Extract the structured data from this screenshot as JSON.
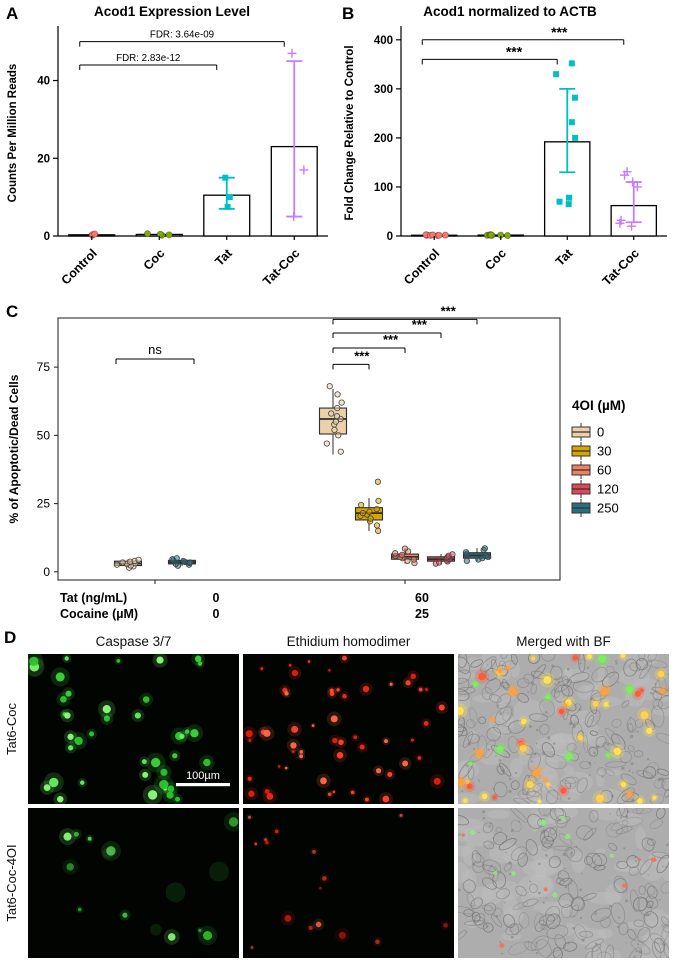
{
  "figure": {
    "panel_labels": {
      "A": "A",
      "B": "B",
      "C": "C",
      "D": "D"
    }
  },
  "chart_data": [
    {
      "id": "A",
      "type": "bar",
      "title": "Acod1 Expression Level",
      "ylabel": "Counts Per Million Reads",
      "categories": [
        "Control",
        "Coc",
        "Tat",
        "Tat-Coc"
      ],
      "values": [
        0.3,
        0.4,
        10.5,
        23
      ],
      "errors": [
        null,
        null,
        [
          7,
          15
        ],
        [
          5,
          45
        ]
      ],
      "points": [
        [
          0.2,
          0.35,
          0.5
        ],
        [
          0.2,
          0.3,
          0.45,
          0.6
        ],
        [
          7.5,
          10,
          15
        ],
        [
          5,
          17,
          47
        ]
      ],
      "colors": [
        "#F8766D",
        "#7CAE00",
        "#00BFC4",
        "#C77CFF"
      ],
      "markers": [
        "circle",
        "circle",
        "square",
        "plus"
      ],
      "ylim": [
        0,
        53
      ],
      "yticks": [
        0,
        20,
        40
      ],
      "brackets": [
        {
          "label": "FDR: 3.64e-09",
          "from": 0,
          "to": 3,
          "y": 50
        },
        {
          "label": "FDR: 2.83e-12",
          "from": 0,
          "to": 2,
          "y": 44
        }
      ]
    },
    {
      "id": "B",
      "type": "bar",
      "title": "Acod1 normalized to ACTB",
      "ylabel": "Fold Change Relative to Control",
      "categories": [
        "Control",
        "Coc",
        "Tat",
        "Tat-Coc"
      ],
      "values": [
        1.5,
        1.8,
        192,
        62
      ],
      "errors": [
        null,
        null,
        [
          130,
          300
        ],
        [
          28,
          110
        ]
      ],
      "points": [
        [
          1,
          1.5,
          2,
          2.5,
          1.2,
          1.8,
          2.2,
          1.6
        ],
        [
          1,
          1.5,
          2,
          2.5,
          1.2,
          1.8,
          2.2
        ],
        [
          65,
          70,
          78,
          200,
          232,
          282,
          330,
          352
        ],
        [
          20,
          26,
          32,
          100,
          110,
          124,
          131
        ]
      ],
      "colors": [
        "#F8766D",
        "#7CAE00",
        "#00BFC4",
        "#C77CFF"
      ],
      "markers": [
        "circle",
        "circle",
        "square",
        "plus"
      ],
      "ylim": [
        0,
        420
      ],
      "yticks": [
        0,
        100,
        200,
        300,
        400
      ],
      "brackets": [
        {
          "label": "***",
          "from": 0,
          "to": 3,
          "y": 400
        },
        {
          "label": "***",
          "from": 0,
          "to": 2,
          "y": 360
        }
      ]
    },
    {
      "id": "C",
      "type": "box",
      "ylabel": "% of Apoptotic/Dead Cells",
      "ylim": [
        -3,
        93
      ],
      "yticks": [
        0,
        25,
        50,
        75
      ],
      "legend_title": "4OI (µM)",
      "legend": [
        {
          "label": "0",
          "color": "#EBD0A9"
        },
        {
          "label": "30",
          "color": "#D8A500"
        },
        {
          "label": "60",
          "color": "#EE8262"
        },
        {
          "label": "120",
          "color": "#E0485A"
        },
        {
          "label": "250",
          "color": "#27707F"
        }
      ],
      "x_axis": {
        "row1_label": "Tat (ng/mL)",
        "row2_label": "Cocaine (µM)",
        "groups": [
          {
            "tat": "0",
            "cocaine": "0"
          },
          {
            "tat": "60",
            "cocaine": "25"
          }
        ]
      },
      "boxes": [
        {
          "group": 0,
          "oi": "0",
          "color": "#EBD0A9",
          "lo": 1.4,
          "q1": 2.3,
          "median": 3,
          "q3": 3.9,
          "hi": 4.6,
          "points": [
            1.5,
            2,
            2.3,
            2.6,
            2.9,
            3.1,
            3.4,
            3.7,
            4,
            4.4
          ]
        },
        {
          "group": 0,
          "oi": "250",
          "color": "#27707F",
          "lo": 2.1,
          "q1": 2.9,
          "median": 3.5,
          "q3": 4.2,
          "hi": 5.1,
          "points": [
            2.2,
            2.6,
            2.9,
            3.2,
            3.4,
            3.6,
            3.9,
            4.2,
            4.6,
            5
          ]
        },
        {
          "group": 1,
          "oi": "0",
          "color": "#EBD0A9",
          "lo": 43,
          "q1": 50.5,
          "median": 56,
          "q3": 60,
          "hi": 67,
          "points": [
            44,
            47,
            50,
            52,
            54,
            55,
            56,
            57,
            58,
            60,
            62,
            65,
            68
          ]
        },
        {
          "group": 1,
          "oi": "30",
          "color": "#D8A500",
          "lo": 15,
          "q1": 19,
          "median": 21.5,
          "q3": 23.5,
          "hi": 27,
          "points": [
            15,
            17,
            18.5,
            19.5,
            20.5,
            21,
            21.5,
            22,
            23,
            24.5,
            26,
            33
          ]
        },
        {
          "group": 1,
          "oi": "60",
          "color": "#EE8262",
          "lo": 3,
          "q1": 4.6,
          "median": 5.5,
          "q3": 6.5,
          "hi": 8.6,
          "points": [
            3.2,
            4,
            4.5,
            5,
            5.4,
            5.8,
            6.2,
            6.8,
            7.5,
            8.5
          ]
        },
        {
          "group": 1,
          "oi": "120",
          "color": "#E0485A",
          "lo": 2.9,
          "q1": 3.9,
          "median": 4.6,
          "q3": 5.5,
          "hi": 6.5,
          "points": [
            3,
            3.4,
            3.8,
            4.2,
            4.6,
            5,
            5.4,
            5.9,
            6.4
          ]
        },
        {
          "group": 1,
          "oi": "250",
          "color": "#27707F",
          "lo": 3.9,
          "q1": 5,
          "median": 6,
          "q3": 7,
          "hi": 8.7,
          "points": [
            4,
            4.5,
            5,
            5.4,
            5.8,
            6.2,
            6.6,
            7.2,
            8,
            8.6
          ]
        }
      ],
      "brackets": [
        {
          "label": "ns",
          "boxes": [
            0,
            1
          ],
          "y": 78
        },
        {
          "label": "***",
          "boxes": [
            2,
            3
          ],
          "y": 76
        },
        {
          "label": "***",
          "boxes": [
            2,
            4
          ],
          "y": 82
        },
        {
          "label": "***",
          "boxes": [
            2,
            5
          ],
          "y": 87.5
        },
        {
          "label": "***",
          "boxes": [
            2,
            6
          ],
          "y": 92.5
        }
      ]
    }
  ],
  "panel_d": {
    "col_headers": [
      "Caspase 3/7",
      "Ethidium homodimer",
      "Merged with BF"
    ],
    "row_labels": [
      "Tat6-Coc",
      "Tat6-Coc-4OI"
    ],
    "scale_bar_label": "100µm",
    "tiles": [
      {
        "row": 0,
        "col": 0,
        "kind": "green",
        "density": "high"
      },
      {
        "row": 0,
        "col": 1,
        "kind": "red",
        "density": "high"
      },
      {
        "row": 0,
        "col": 2,
        "kind": "merged",
        "density": "high"
      },
      {
        "row": 1,
        "col": 0,
        "kind": "green",
        "density": "low"
      },
      {
        "row": 1,
        "col": 1,
        "kind": "red",
        "density": "low"
      },
      {
        "row": 1,
        "col": 2,
        "kind": "merged",
        "density": "low"
      }
    ]
  }
}
